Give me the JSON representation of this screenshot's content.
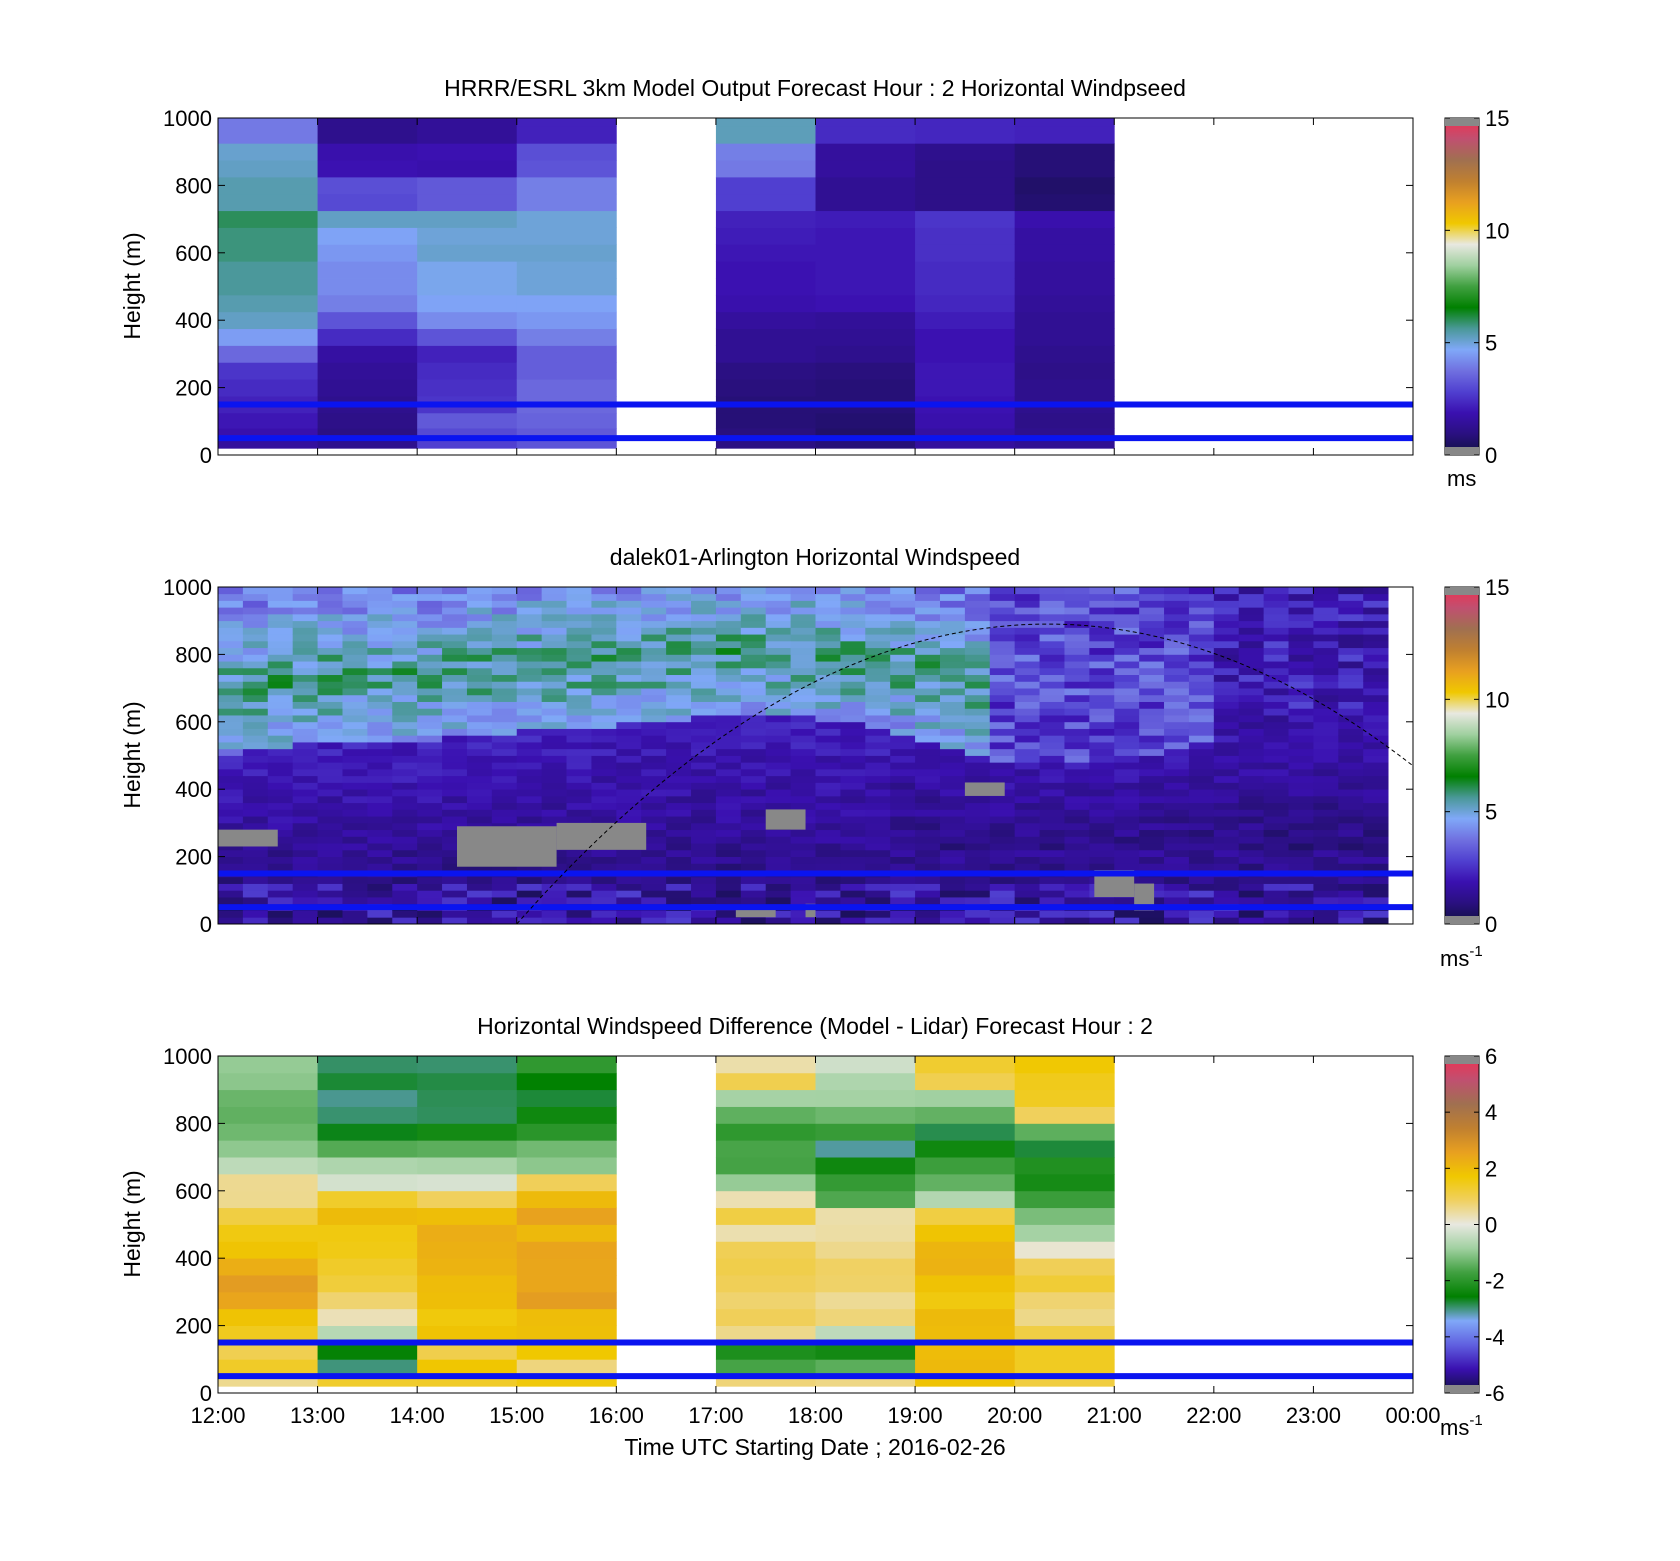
{
  "figure": {
    "xlabel": "Time UTC  Starting Date ; 2016-02-26",
    "x_ticks": [
      "12:00",
      "13:00",
      "14:00",
      "15:00",
      "16:00",
      "17:00",
      "18:00",
      "19:00",
      "20:00",
      "21:00",
      "22:00",
      "23:00",
      "00:00"
    ]
  },
  "colors": {
    "wind_scale": [
      "#101040",
      "#2a1080",
      "#3a10b0",
      "#5040d0",
      "#7070e0",
      "#80a8f8",
      "#4a9898",
      "#008000",
      "#40a040",
      "#a0d0a0",
      "#e8e8e0",
      "#f0c800",
      "#e8a020",
      "#c08030",
      "#a07050",
      "#c05070",
      "#f03050"
    ],
    "diff_scale": [
      "#101040",
      "#3a10b0",
      "#6060e0",
      "#80a8f8",
      "#008000",
      "#40a040",
      "#a0d0a0",
      "#e8e8e0",
      "#f0d060",
      "#f0c800",
      "#e8a020",
      "#c08030",
      "#a07050",
      "#c05070",
      "#f03050"
    ],
    "missing": "#888888",
    "bl_lines": "#0a14f0"
  },
  "chart_data": [
    {
      "type": "heatmap",
      "title": "HRRR/ESRL 3km Model Output   Forecast Hour : 2 Horizontal Windpseed",
      "ylabel": "Height (m)",
      "y_ticks": [
        "0",
        "200",
        "400",
        "600",
        "800",
        "1000"
      ],
      "ylim": [
        0,
        1000
      ],
      "xlim": [
        "12:00",
        "00:00"
      ],
      "colorbar": {
        "ticks": [
          "0",
          "5",
          "10",
          "15"
        ],
        "unit": "ms",
        "unit_sup": "",
        "range": [
          0,
          15
        ]
      },
      "reference_lines_m": [
        50,
        150
      ],
      "hours": [
        "12:00",
        "13:00",
        "14:00",
        "15:00",
        "17:00",
        "18:00",
        "19:00",
        "20:00"
      ],
      "heights_m": [
        25,
        60,
        100,
        150,
        200,
        250,
        300,
        350,
        400,
        450,
        500,
        550,
        600,
        650,
        700,
        750,
        800,
        850,
        900,
        950,
        1000
      ],
      "values": [
        [
          1.5,
          1.2,
          2.8,
          3.2,
          1.0,
          0.8,
          1.5,
          1.3
        ],
        [
          1.8,
          1.0,
          3.0,
          3.3,
          0.9,
          0.6,
          1.6,
          1.2
        ],
        [
          2.0,
          1.1,
          3.3,
          3.5,
          0.8,
          0.7,
          1.8,
          1.1
        ],
        [
          2.2,
          1.2,
          2.6,
          3.6,
          0.8,
          0.8,
          1.9,
          1.2
        ],
        [
          2.4,
          1.3,
          2.5,
          3.6,
          0.9,
          0.8,
          2.0,
          1.2
        ],
        [
          2.6,
          1.4,
          2.4,
          3.4,
          1.0,
          0.9,
          2.0,
          1.1
        ],
        [
          3.6,
          1.6,
          2.2,
          3.4,
          1.3,
          1.2,
          1.9,
          1.2
        ],
        [
          4.5,
          2.4,
          3.2,
          4.0,
          1.3,
          1.3,
          1.9,
          1.3
        ],
        [
          5.2,
          3.2,
          4.2,
          4.4,
          1.5,
          1.4,
          2.1,
          1.3
        ],
        [
          5.4,
          4.0,
          4.6,
          4.6,
          1.8,
          1.9,
          2.3,
          1.4
        ],
        [
          5.6,
          4.2,
          4.8,
          5.0,
          1.9,
          2.0,
          2.4,
          1.5
        ],
        [
          5.6,
          4.2,
          4.8,
          5.0,
          1.9,
          2.0,
          2.4,
          1.5
        ],
        [
          5.8,
          4.4,
          5.1,
          5.1,
          2.0,
          2.0,
          2.5,
          1.6
        ],
        [
          5.8,
          4.6,
          5.0,
          5.0,
          2.1,
          2.0,
          2.5,
          1.6
        ],
        [
          6.0,
          5.2,
          5.2,
          5.0,
          2.2,
          2.1,
          2.6,
          1.8
        ],
        [
          5.4,
          3.0,
          3.3,
          4.0,
          2.8,
          1.3,
          1.1,
          0.7
        ],
        [
          5.4,
          3.1,
          3.3,
          4.0,
          2.8,
          1.3,
          1.1,
          0.6
        ],
        [
          5.2,
          1.9,
          1.8,
          3.2,
          3.9,
          1.5,
          1.1,
          0.8
        ],
        [
          5.1,
          1.8,
          1.9,
          3.1,
          4.0,
          1.5,
          1.2,
          0.8
        ],
        [
          3.9,
          1.2,
          1.4,
          2.2,
          5.3,
          2.4,
          2.3,
          2.2
        ],
        [
          3.9,
          1.2,
          1.4,
          2.2,
          5.3,
          2.4,
          2.3,
          2.2
        ]
      ]
    },
    {
      "type": "heatmap",
      "title": "dalek01-Arlington  Horizontal Windspeed",
      "ylabel": "Height (m)",
      "y_ticks": [
        "0",
        "200",
        "400",
        "600",
        "800",
        "1000"
      ],
      "ylim": [
        0,
        1000
      ],
      "xlim": [
        "12:00",
        "00:00"
      ],
      "colorbar": {
        "ticks": [
          "0",
          "5",
          "10",
          "15"
        ],
        "unit": "ms",
        "unit_sup": "-1",
        "range": [
          0,
          15
        ]
      },
      "reference_lines_m": [
        50,
        150
      ],
      "time_step_hours": 0.25,
      "height_step_m": 20,
      "jet_boundary_m": [
        [
          12.0,
          500
        ],
        [
          13.0,
          540
        ],
        [
          14.0,
          540
        ],
        [
          15.0,
          570
        ],
        [
          16.0,
          590
        ],
        [
          17.0,
          620
        ],
        [
          18.0,
          610
        ],
        [
          19.0,
          560
        ],
        [
          20.0,
          470
        ],
        [
          21.0,
          470
        ],
        [
          22.0,
          560
        ],
        [
          23.0,
          620
        ]
      ],
      "missing_patches": [
        {
          "t": [
            12.0,
            12.6
          ],
          "h": [
            230,
            280
          ]
        },
        {
          "t": [
            14.4,
            15.4
          ],
          "h": [
            170,
            290
          ]
        },
        {
          "t": [
            15.4,
            16.3
          ],
          "h": [
            220,
            300
          ]
        },
        {
          "t": [
            17.5,
            17.9
          ],
          "h": [
            280,
            340
          ]
        },
        {
          "t": [
            17.9,
            18.0
          ],
          "h": [
            20,
            60
          ]
        },
        {
          "t": [
            19.5,
            19.9
          ],
          "h": [
            380,
            420
          ]
        },
        {
          "t": [
            20.8,
            21.2
          ],
          "h": [
            80,
            160
          ]
        },
        {
          "t": [
            21.2,
            21.4
          ],
          "h": [
            40,
            120
          ]
        },
        {
          "t": [
            17.2,
            17.6
          ],
          "h": [
            20,
            50
          ]
        }
      ],
      "curve": {
        "type": "dashed",
        "start": [
          "15:00",
          0
        ],
        "peak": [
          "20:20",
          890
        ],
        "end": [
          "00:00",
          420
        ]
      }
    },
    {
      "type": "heatmap",
      "title": "Horizontal Windspeed Difference (Model - Lidar) Forecast Hour : 2",
      "ylabel": "Height (m)",
      "y_ticks": [
        "0",
        "200",
        "400",
        "600",
        "800",
        "1000"
      ],
      "ylim": [
        0,
        1000
      ],
      "xlim": [
        "12:00",
        "00:00"
      ],
      "colorbar": {
        "ticks": [
          "-6",
          "-4",
          "-2",
          "0",
          "2",
          "4",
          "6"
        ],
        "unit": "ms",
        "unit_sup": "-1",
        "range": [
          -6,
          6
        ]
      },
      "reference_lines_m": [
        50,
        150
      ],
      "hours": [
        "12:00",
        "13:00",
        "14:00",
        "15:00",
        "17:00",
        "18:00",
        "19:00",
        "20:00"
      ],
      "heights_m": [
        25,
        75,
        125,
        175,
        225,
        275,
        325,
        375,
        425,
        475,
        525,
        575,
        625,
        675,
        725,
        775,
        825,
        875,
        925,
        975
      ],
      "values": [
        [
          0.8,
          1.4,
          1.2,
          1.5,
          0.5,
          0.6,
          1.8,
          1.2
        ],
        [
          1.2,
          -2.8,
          1.6,
          0.6,
          -1.8,
          -1.5,
          1.8,
          1.2
        ],
        [
          1.2,
          -2.5,
          0.9,
          1.6,
          -2.2,
          -2.5,
          1.9,
          1.3
        ],
        [
          1.4,
          -0.5,
          1.7,
          1.9,
          0.8,
          -0.3,
          1.9,
          1.2
        ],
        [
          2.0,
          0.3,
          1.8,
          2.0,
          1.0,
          0.6,
          1.8,
          0.8
        ],
        [
          2.4,
          0.9,
          1.9,
          2.6,
          1.0,
          0.7,
          1.8,
          0.9
        ],
        [
          2.5,
          1.0,
          2.0,
          2.6,
          0.9,
          0.6,
          2.0,
          1.0
        ],
        [
          2.4,
          1.2,
          2.1,
          2.5,
          0.8,
          0.6,
          2.1,
          1.1
        ],
        [
          2.0,
          1.4,
          2.2,
          2.3,
          0.9,
          0.4,
          2.0,
          0.2
        ],
        [
          1.7,
          1.6,
          2.3,
          2.2,
          0.3,
          0.4,
          2.0,
          -0.8
        ],
        [
          1.3,
          2.0,
          1.9,
          2.3,
          0.9,
          0.4,
          1.3,
          -1.0
        ],
        [
          0.7,
          1.4,
          0.9,
          1.8,
          0.4,
          -1.6,
          -0.4,
          -1.8
        ],
        [
          0.7,
          -0.2,
          -0.3,
          0.9,
          -1.0,
          -2.0,
          -1.3,
          -2.2
        ],
        [
          -0.5,
          -0.8,
          -0.5,
          -0.8,
          -1.6,
          -2.6,
          -2.0,
          -2.3
        ],
        [
          -1.1,
          -1.5,
          -1.6,
          -1.5,
          -1.8,
          -3.0,
          -2.5,
          -2.8
        ],
        [
          -1.4,
          -2.6,
          -2.5,
          -2.0,
          -1.8,
          -2.0,
          -2.9,
          -1.5
        ],
        [
          -1.5,
          -3.0,
          -2.8,
          -2.3,
          -1.3,
          -1.2,
          -1.6,
          0.8
        ],
        [
          -1.4,
          -3.0,
          -3.0,
          -2.6,
          -0.7,
          -0.6,
          -0.7,
          1.6
        ],
        [
          -1.2,
          -2.8,
          -3.0,
          -2.5,
          0.8,
          -0.5,
          0.9,
          1.6
        ],
        [
          -0.9,
          -2.7,
          -2.9,
          -2.1,
          0.5,
          -0.4,
          1.1,
          1.8
        ]
      ]
    }
  ]
}
